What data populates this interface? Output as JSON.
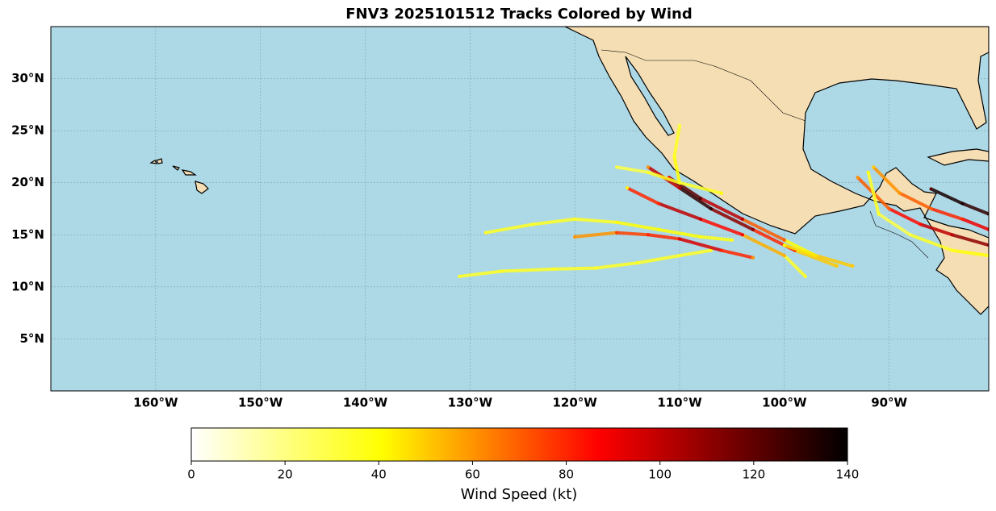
{
  "chart_data": {
    "type": "map",
    "title": "FNV3 2025101512 Tracks Colored by Wind",
    "xlim": [
      -170,
      -80.5
    ],
    "ylim": [
      0,
      35
    ],
    "xticks": [
      {
        "value": -160,
        "label": "160°W"
      },
      {
        "value": -150,
        "label": "150°W"
      },
      {
        "value": -140,
        "label": "140°W"
      },
      {
        "value": -130,
        "label": "130°W"
      },
      {
        "value": -120,
        "label": "120°W"
      },
      {
        "value": -110,
        "label": "110°W"
      },
      {
        "value": -100,
        "label": "100°W"
      },
      {
        "value": -90,
        "label": "90°W"
      }
    ],
    "yticks": [
      {
        "value": 5,
        "label": "5°N"
      },
      {
        "value": 10,
        "label": "10°N"
      },
      {
        "value": 15,
        "label": "15°N"
      },
      {
        "value": 20,
        "label": "20°N"
      },
      {
        "value": 25,
        "label": "25°N"
      },
      {
        "value": 30,
        "label": "30°N"
      }
    ],
    "grid": true,
    "tracks": [
      {
        "lon": [
          -131,
          -127,
          -122,
          -118,
          -114,
          -110,
          -107
        ],
        "lat": [
          11,
          11.5,
          11.7,
          11.8,
          12.3,
          13,
          13.5
        ],
        "wind": [
          35,
          35,
          35,
          35,
          35,
          35,
          35
        ]
      },
      {
        "lon": [
          -128.5,
          -124,
          -120,
          -116,
          -112,
          -108,
          -105
        ],
        "lat": [
          15.2,
          16,
          16.5,
          16.2,
          15.5,
          14.8,
          14.5
        ],
        "wind": [
          35,
          35,
          35,
          40,
          40,
          38,
          35
        ]
      },
      {
        "lon": [
          -120,
          -116,
          -113,
          -110,
          -106,
          -103
        ],
        "lat": [
          14.8,
          15.2,
          15,
          14.6,
          13.5,
          12.8
        ],
        "wind": [
          60,
          75,
          80,
          95,
          80,
          60
        ]
      },
      {
        "lon": [
          -97,
          -100,
          -104,
          -108,
          -111
        ],
        "lat": [
          13,
          14.5,
          16.5,
          18.5,
          20.5
        ],
        "wind": [
          40,
          70,
          100,
          120,
          90
        ]
      },
      {
        "lon": [
          -95,
          -99,
          -103,
          -107,
          -110,
          -113
        ],
        "lat": [
          12,
          13.5,
          15.5,
          17.5,
          19.5,
          21.5
        ],
        "wind": [
          50,
          80,
          110,
          130,
          100,
          60
        ]
      },
      {
        "lon": [
          -98,
          -100,
          -104,
          -108,
          -112,
          -115
        ],
        "lat": [
          11,
          13,
          15,
          16.5,
          18,
          19.5
        ],
        "wind": [
          35,
          55,
          85,
          100,
          80,
          40
        ]
      },
      {
        "lon": [
          -110,
          -110.5,
          -110
        ],
        "lat": [
          20,
          22.5,
          25.5
        ],
        "wind": [
          40,
          35,
          30
        ]
      },
      {
        "lon": [
          -116,
          -113,
          -110,
          -106
        ],
        "lat": [
          21.5,
          21,
          20,
          19
        ],
        "wind": [
          30,
          35,
          35,
          40
        ]
      },
      {
        "lon": [
          -80.5,
          -84,
          -87,
          -90,
          -93
        ],
        "lat": [
          14,
          15,
          16,
          17.5,
          20.5
        ],
        "wind": [
          110,
          100,
          85,
          70,
          60
        ]
      },
      {
        "lon": [
          -80.5,
          -83,
          -86
        ],
        "lat": [
          17,
          18,
          19.4
        ],
        "wind": [
          130,
          135,
          120
        ]
      },
      {
        "lon": [
          -80.5,
          -84,
          -88,
          -91,
          -92
        ],
        "lat": [
          13,
          13.5,
          15,
          17,
          21
        ],
        "wind": [
          40,
          35,
          30,
          35,
          40
        ]
      },
      {
        "lon": [
          -80.5,
          -83,
          -86,
          -89,
          -91.5
        ],
        "lat": [
          15.5,
          16.5,
          17.5,
          19,
          21.5
        ],
        "wind": [
          90,
          80,
          70,
          60,
          50
        ]
      },
      {
        "lon": [
          -93.5,
          -97,
          -100
        ],
        "lat": [
          12,
          13,
          14
        ],
        "wind": [
          50,
          45,
          40
        ]
      }
    ],
    "colorbar": {
      "label": "Wind Speed (kt)",
      "lim": [
        0,
        140
      ],
      "ticks": [
        0,
        20,
        40,
        60,
        80,
        100,
        120,
        140
      ],
      "colormap": "hot_r"
    }
  }
}
